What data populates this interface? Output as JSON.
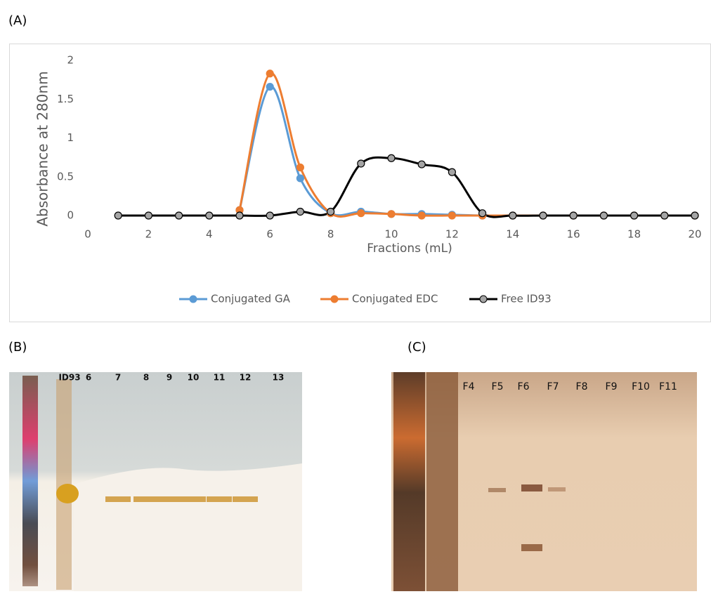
{
  "chart_data": {
    "type": "line",
    "y_label": "Absorbance at 280nm",
    "x_label": "Fractions (mL)",
    "x": [
      1,
      2,
      3,
      4,
      5,
      6,
      7,
      8,
      9,
      10,
      11,
      12,
      13,
      14,
      15,
      16,
      17,
      18,
      19,
      20
    ],
    "series": [
      {
        "name": "Conjugated GA",
        "color": "#5b9bd5",
        "values": [
          null,
          null,
          null,
          null,
          0.07,
          1.66,
          0.48,
          0.03,
          0.05,
          0.02,
          0.02,
          0.01,
          0,
          0,
          0,
          0,
          0,
          0,
          0,
          0
        ]
      },
      {
        "name": "Conjugated EDC",
        "color": "#ed7d31",
        "values": [
          null,
          null,
          null,
          null,
          0.07,
          1.83,
          0.62,
          0.03,
          0.03,
          0.02,
          0,
          0,
          0,
          0,
          0,
          0,
          0,
          0,
          0,
          0
        ]
      },
      {
        "name": "Free ID93",
        "color": "#000000",
        "values": [
          0,
          0,
          0,
          0,
          0,
          0,
          0.05,
          0.05,
          0.67,
          0.74,
          0.66,
          0.56,
          0.03,
          0,
          0,
          0,
          0,
          0,
          0,
          0
        ]
      }
    ],
    "xlim": [
      0,
      20
    ],
    "xticks": [
      0,
      2,
      4,
      6,
      8,
      10,
      12,
      14,
      16,
      18,
      20
    ],
    "ylim": [
      0,
      2
    ],
    "yticks": [
      0,
      0.5,
      1,
      1.5,
      2
    ],
    "grid": false,
    "legend": "bottom"
  },
  "panels": {
    "a": "(A)",
    "b": {
      "label": "(B)",
      "lanes": [
        "ID93",
        "6",
        "7",
        "8",
        "9",
        "10",
        "11",
        "12",
        "13"
      ]
    },
    "c": {
      "label": "(C)",
      "lanes": [
        "F4",
        "F5",
        "F6",
        "F7",
        "F8",
        "F9",
        "F10",
        "F11"
      ]
    }
  }
}
